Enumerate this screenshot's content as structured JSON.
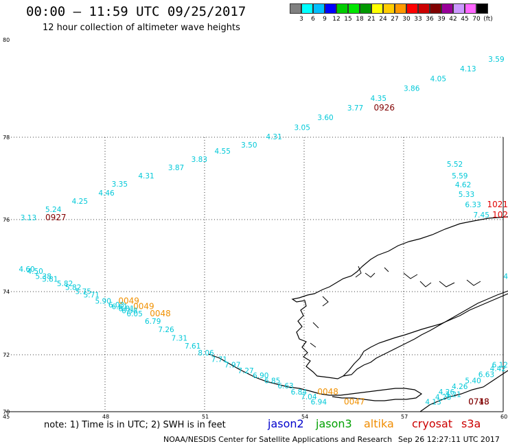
{
  "header": {
    "title": "00:00 – 11:59 UTC 09/25/2017",
    "subtitle": "12 hour collection of altimeter wave heights"
  },
  "colorbar": {
    "colors": [
      "#808080",
      "#00ffff",
      "#00bfff",
      "#0000ff",
      "#00cc00",
      "#00e600",
      "#009900",
      "#ffff00",
      "#ffcc00",
      "#ff9900",
      "#ff0000",
      "#cc0000",
      "#800000",
      "#990099",
      "#cc99ff",
      "#ff66ff",
      "#000000"
    ],
    "labels": [
      "3",
      "6",
      "9",
      "12",
      "15",
      "18",
      "21",
      "24",
      "27",
      "30",
      "33",
      "36",
      "39",
      "42",
      "45",
      "70",
      "(ft)"
    ]
  },
  "axes": {
    "lat_labels": [
      "80",
      "78",
      "76",
      "74",
      "72",
      "70"
    ],
    "lon_labels": [
      "45",
      "48",
      "51",
      "54",
      "57",
      "60"
    ]
  },
  "colors": {
    "cyan": "#00c8d8",
    "orange": "#f09000",
    "darkred": "#800000",
    "red": "#e00000"
  },
  "annotations": [
    {
      "t": "3.13",
      "c": "cyan",
      "lon": 45.45,
      "lat": 75.98
    },
    {
      "t": "0927",
      "c": "darkred",
      "lon": 46.2,
      "lat": 75.98
    },
    {
      "t": "5.24",
      "c": "cyan",
      "lon": 46.2,
      "lat": 76.18
    },
    {
      "t": "4.25",
      "c": "cyan",
      "lon": 47.0,
      "lat": 76.38
    },
    {
      "t": "4.46",
      "c": "cyan",
      "lon": 47.8,
      "lat": 76.58
    },
    {
      "t": "3.35",
      "c": "cyan",
      "lon": 48.2,
      "lat": 76.8
    },
    {
      "t": "4.31",
      "c": "cyan",
      "lon": 49.0,
      "lat": 77.0
    },
    {
      "t": "3.87",
      "c": "cyan",
      "lon": 49.9,
      "lat": 77.2
    },
    {
      "t": "3.83",
      "c": "cyan",
      "lon": 50.6,
      "lat": 77.4
    },
    {
      "t": "4.55",
      "c": "cyan",
      "lon": 51.3,
      "lat": 77.6
    },
    {
      "t": "3.50",
      "c": "cyan",
      "lon": 52.1,
      "lat": 77.75
    },
    {
      "t": "4.31",
      "c": "cyan",
      "lon": 52.85,
      "lat": 77.95
    },
    {
      "t": "3.05",
      "c": "cyan",
      "lon": 53.7,
      "lat": 78.15
    },
    {
      "t": "3.60",
      "c": "cyan",
      "lon": 54.4,
      "lat": 78.35
    },
    {
      "t": "3.77",
      "c": "cyan",
      "lon": 55.3,
      "lat": 78.55
    },
    {
      "t": "0926",
      "c": "darkred",
      "lon": 56.1,
      "lat": 78.55
    },
    {
      "t": "4.35",
      "c": "cyan",
      "lon": 56.0,
      "lat": 78.75
    },
    {
      "t": "3.86",
      "c": "cyan",
      "lon": 57.0,
      "lat": 78.95
    },
    {
      "t": "4.05",
      "c": "cyan",
      "lon": 57.8,
      "lat": 79.15
    },
    {
      "t": "4.13",
      "c": "cyan",
      "lon": 58.7,
      "lat": 79.35
    },
    {
      "t": "3.59",
      "c": "cyan",
      "lon": 59.55,
      "lat": 79.55
    },
    {
      "t": "5.52",
      "c": "cyan",
      "lon": 58.3,
      "lat": 77.28
    },
    {
      "t": "5.59",
      "c": "cyan",
      "lon": 58.45,
      "lat": 77.0
    },
    {
      "t": "4.62",
      "c": "cyan",
      "lon": 58.55,
      "lat": 76.78
    },
    {
      "t": "5.33",
      "c": "cyan",
      "lon": 58.65,
      "lat": 76.55
    },
    {
      "t": "6.33",
      "c": "cyan",
      "lon": 58.85,
      "lat": 76.3
    },
    {
      "t": "1021",
      "c": "red",
      "lon": 59.85,
      "lat": 76.3
    },
    {
      "t": "7.45",
      "c": "cyan",
      "lon": 59.1,
      "lat": 76.05
    },
    {
      "t": "102",
      "c": "red",
      "lon": 59.95,
      "lat": 76.05
    },
    {
      "t": "4",
      "c": "cyan",
      "lon": 60.0,
      "lat": 74.35
    },
    {
      "t": "4.60",
      "c": "cyan",
      "lon": 45.4,
      "lat": 74.55
    },
    {
      "t": "4.50",
      "c": "cyan",
      "lon": 45.65,
      "lat": 74.5
    },
    {
      "t": "5.38",
      "c": "cyan",
      "lon": 45.9,
      "lat": 74.35
    },
    {
      "t": "5.81",
      "c": "cyan",
      "lon": 46.1,
      "lat": 74.28
    },
    {
      "t": "5.82",
      "c": "cyan",
      "lon": 46.55,
      "lat": 74.15
    },
    {
      "t": "5.82",
      "c": "cyan",
      "lon": 46.8,
      "lat": 74.05
    },
    {
      "t": "5.75",
      "c": "cyan",
      "lon": 47.1,
      "lat": 73.92
    },
    {
      "t": "5.71",
      "c": "cyan",
      "lon": 47.35,
      "lat": 73.82
    },
    {
      "t": "5.90",
      "c": "cyan",
      "lon": 47.7,
      "lat": 73.62
    },
    {
      "t": "0049",
      "c": "orange",
      "lon": 48.4,
      "lat": 73.62
    },
    {
      "t": "6.03",
      "c": "cyan",
      "lon": 48.1,
      "lat": 73.5
    },
    {
      "t": "6.81",
      "c": "cyan",
      "lon": 48.4,
      "lat": 73.38
    },
    {
      "t": "6.61",
      "c": "cyan",
      "lon": 48.2,
      "lat": 73.45
    },
    {
      "t": "0049",
      "c": "orange",
      "lon": 48.85,
      "lat": 73.45
    },
    {
      "t": "6.58",
      "c": "cyan",
      "lon": 48.5,
      "lat": 73.32
    },
    {
      "t": "6.05",
      "c": "cyan",
      "lon": 48.65,
      "lat": 73.22
    },
    {
      "t": "0048",
      "c": "orange",
      "lon": 49.35,
      "lat": 73.22
    },
    {
      "t": "6.79",
      "c": "cyan",
      "lon": 49.2,
      "lat": 72.98
    },
    {
      "t": "7.26",
      "c": "cyan",
      "lon": 49.6,
      "lat": 72.72
    },
    {
      "t": "7.31",
      "c": "cyan",
      "lon": 50.0,
      "lat": 72.45
    },
    {
      "t": "7.61",
      "c": "cyan",
      "lon": 50.4,
      "lat": 72.2
    },
    {
      "t": "8.06",
      "c": "cyan",
      "lon": 50.8,
      "lat": 71.98
    },
    {
      "t": "7.71",
      "c": "cyan",
      "lon": 51.2,
      "lat": 71.75
    },
    {
      "t": "7.97",
      "c": "cyan",
      "lon": 51.6,
      "lat": 71.55
    },
    {
      "t": "7.27",
      "c": "cyan",
      "lon": 52.0,
      "lat": 71.35
    },
    {
      "t": "6.90",
      "c": "cyan",
      "lon": 52.45,
      "lat": 71.18
    },
    {
      "t": "6.85",
      "c": "cyan",
      "lon": 52.8,
      "lat": 71.0
    },
    {
      "t": "6.63",
      "c": "cyan",
      "lon": 53.2,
      "lat": 70.82
    },
    {
      "t": "6.84",
      "c": "cyan",
      "lon": 53.6,
      "lat": 70.6
    },
    {
      "t": "0048",
      "c": "orange",
      "lon": 54.4,
      "lat": 70.6
    },
    {
      "t": "7.04",
      "c": "cyan",
      "lon": 53.9,
      "lat": 70.43
    },
    {
      "t": "6.94",
      "c": "cyan",
      "lon": 54.2,
      "lat": 70.25
    },
    {
      "t": "0047",
      "c": "orange",
      "lon": 55.2,
      "lat": 70.25
    },
    {
      "t": "6.12",
      "c": "cyan",
      "lon": 59.9,
      "lat": 71.55
    },
    {
      "t": "4.42",
      "c": "cyan",
      "lon": 59.6,
      "lat": 71.42
    },
    {
      "t": "6.63",
      "c": "cyan",
      "lon": 59.25,
      "lat": 71.22
    },
    {
      "t": "5.40",
      "c": "cyan",
      "lon": 58.85,
      "lat": 71.0
    },
    {
      "t": "4.26",
      "c": "cyan",
      "lon": 58.45,
      "lat": 70.8
    },
    {
      "t": "4.26",
      "c": "cyan",
      "lon": 58.05,
      "lat": 70.6
    },
    {
      "t": "3.21",
      "c": "cyan",
      "lon": 58.25,
      "lat": 70.52
    },
    {
      "t": "4.28",
      "c": "cyan",
      "lon": 57.95,
      "lat": 70.42
    },
    {
      "t": "4.13",
      "c": "cyan",
      "lon": 57.65,
      "lat": 70.25
    },
    {
      "t": "0718",
      "c": "darkred",
      "lon": 58.95,
      "lat": 70.25
    },
    {
      "t": "0748",
      "c": "darkred",
      "lon": 58.95,
      "lat": 70.25
    }
  ],
  "footer": {
    "note": "note:  1) Time is in UTC;  2) SWH is in feet",
    "legend": [
      {
        "label": "jason2",
        "color": "#0000cc"
      },
      {
        "label": "jason3",
        "color": "#00a000"
      },
      {
        "label": "altika",
        "color": "#f08c00"
      },
      {
        "label": "cryosat",
        "color": "#cc0000"
      },
      {
        "label": "s3a",
        "color": "#cc0000"
      }
    ],
    "credit": "NOAA/NESDIS Center for Satellite Applications and Research",
    "timestamp": "Sep 26 12:27:11 UTC 2017"
  }
}
